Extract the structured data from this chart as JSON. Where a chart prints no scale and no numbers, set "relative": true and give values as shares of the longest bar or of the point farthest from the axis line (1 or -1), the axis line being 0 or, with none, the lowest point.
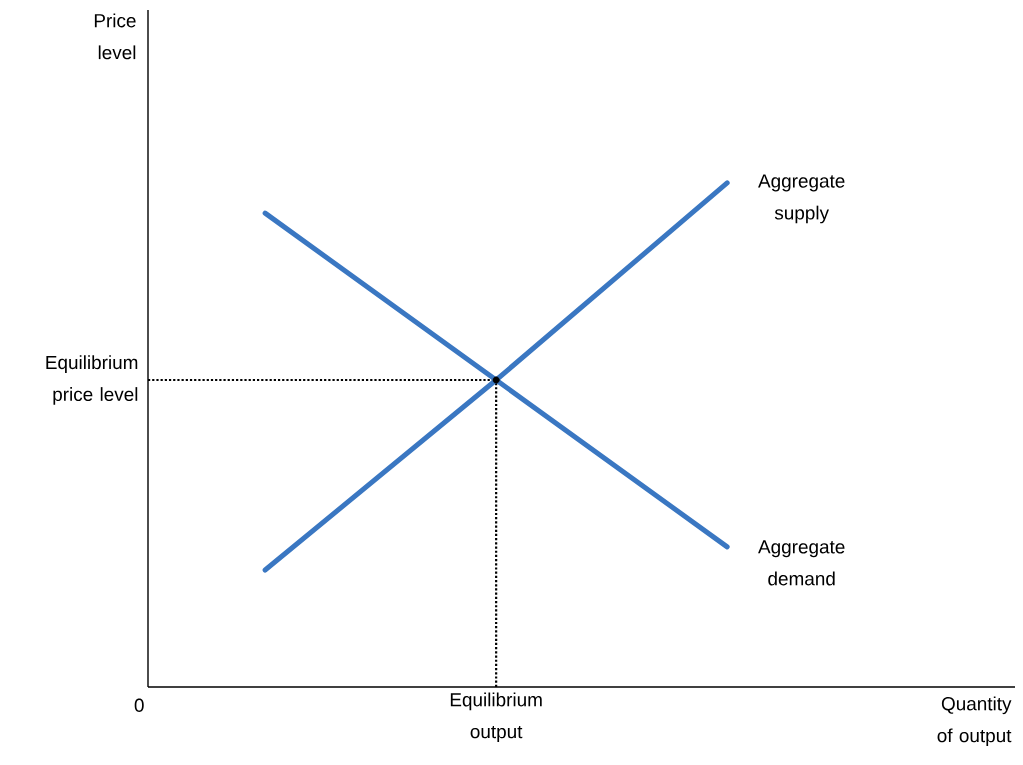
{
  "chart_data": {
    "type": "line",
    "relative": true,
    "xlabel": "Quantity of output",
    "annotations": [
      "0",
      "Equilibrium output",
      "Price level"
    ],
    "categories": [
      null,
      null,
      null
    ],
    "series": [
      {
        "name": "Aggregate supply",
        "color": "#3a77c2",
        "values": [
          0.232,
          0.609,
          1.0
        ]
      },
      {
        "name": "Aggregate demand",
        "color": "#3a77c2",
        "values": [
          0.94,
          0.609,
          0.278
        ]
      },
      {
        "color": "#000000",
        "values": [
          null,
          0.609,
          null
        ],
        "marker": "circle"
      }
    ],
    "ref_lines": [
      {
        "axis": "y",
        "value": 0.609,
        "label": "Equilibrium price level",
        "line_style": "dotted",
        "color": "#000000"
      }
    ]
  }
}
